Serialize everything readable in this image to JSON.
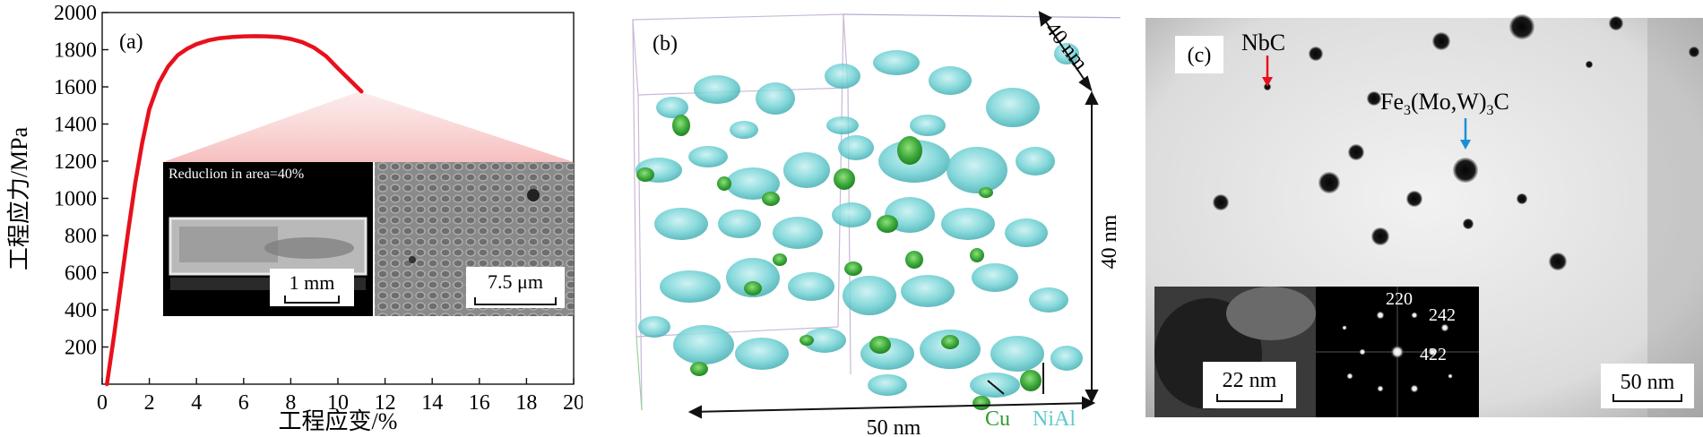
{
  "panel_a": {
    "label": "(a)",
    "inset_caption": "Reduclion in area=40%",
    "scale_left": "1 mm",
    "scale_right": "7.5 μm",
    "chart_data": {
      "type": "line",
      "xlabel": "工程应变/%",
      "ylabel": "工程应力/MPa",
      "xlim": [
        0,
        20
      ],
      "ylim": [
        0,
        2000
      ],
      "xticks": [
        0,
        2,
        4,
        6,
        8,
        10,
        12,
        14,
        16,
        18,
        20
      ],
      "yticks": [
        200,
        400,
        600,
        800,
        1000,
        1200,
        1400,
        1600,
        1800,
        2000
      ],
      "grid": false,
      "series": [
        {
          "color": "#e8101c",
          "x": [
            0.2,
            0.5,
            0.8,
            1.1,
            1.4,
            1.7,
            2.0,
            2.4,
            2.8,
            3.2,
            3.6,
            4.0,
            4.5,
            5.0,
            5.5,
            6.0,
            6.5,
            7.0,
            7.5,
            8.0,
            8.5,
            9.0,
            9.5,
            10.0,
            10.4,
            10.8,
            11.0
          ],
          "y": [
            0,
            260,
            540,
            820,
            1080,
            1300,
            1480,
            1620,
            1710,
            1770,
            1805,
            1830,
            1850,
            1862,
            1868,
            1872,
            1873,
            1872,
            1868,
            1858,
            1840,
            1810,
            1765,
            1700,
            1650,
            1600,
            1575
          ]
        }
      ]
    }
  },
  "panel_b": {
    "label": "(b)",
    "dim_top": "40 nm",
    "dim_right": "40 nm",
    "dim_bottom": "50 nm",
    "legend_cu": "Cu",
    "legend_nial": "NiAl",
    "colors": {
      "nial": "#5ec9cc",
      "cu": "#2f9e2f"
    }
  },
  "panel_c": {
    "label": "(c)",
    "nbc": "NbC",
    "fe_prefix": "Fe",
    "fe_sub1": "3",
    "fe_mid": "(Mo,W)",
    "fe_sub2": "3",
    "fe_suffix": "C",
    "scale_main": "50 nm",
    "scale_inset": "22 nm",
    "spot_220": "220",
    "spot_242": "242",
    "spot_422": "422",
    "colors": {
      "nbc_arrow": "#e8101c",
      "fe_arrow": "#1a8fd6"
    }
  }
}
